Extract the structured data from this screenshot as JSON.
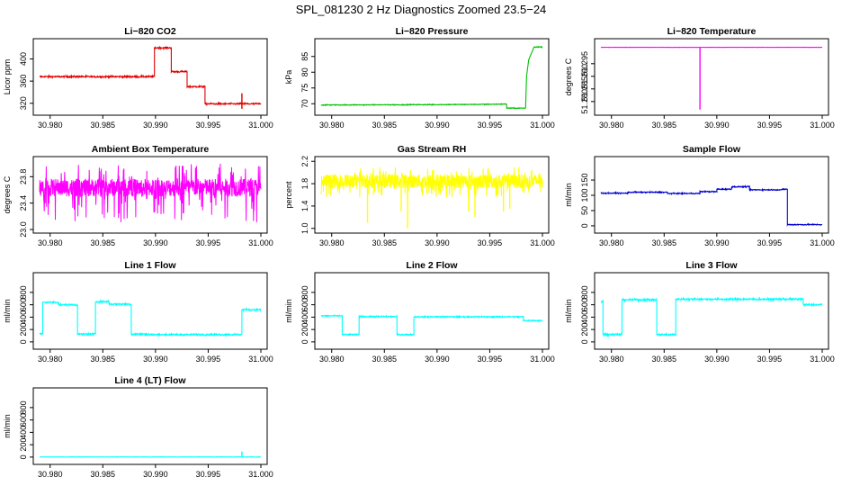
{
  "figure": {
    "title": "SPL_081230  2 Hz Diagnostics Zoomed 23.5−24"
  },
  "colors": {
    "red": "#e00000",
    "green": "#00c000",
    "magenta": "#ff00ff",
    "yellow": "#ffff00",
    "blue": "#0000d0",
    "cyan": "#00ffff"
  },
  "chart_data": [
    {
      "type": "line",
      "title": "Li−820 CO2",
      "ylabel": "Licor ppm",
      "color": "#e00000",
      "xlim": [
        30.979,
        31.0
      ],
      "ylim": [
        305,
        430
      ],
      "x_ticks": [
        30.98,
        30.985,
        30.99,
        30.995,
        31.0
      ],
      "x_tick_labels": [
        "30.980",
        "30.985",
        "30.990",
        "30.995",
        "31.000"
      ],
      "y_ticks": [
        320,
        360,
        400
      ],
      "y_tick_labels": [
        "320",
        "360",
        "400"
      ],
      "series": [
        {
          "style": "noisy",
          "noise": 1.5,
          "x": [
            30.979,
            30.9899,
            30.9899,
            30.9915,
            30.9915,
            30.993,
            30.993,
            30.9947,
            30.9947,
            31.0
          ],
          "y": [
            368,
            368,
            420,
            420,
            377,
            377,
            350,
            350,
            319,
            319
          ]
        },
        {
          "style": "spikes",
          "x": [
            30.9982
          ],
          "y": [
            [
              310,
              338
            ]
          ]
        }
      ]
    },
    {
      "type": "line",
      "title": "Li−820 Pressure",
      "ylabel": "kPa",
      "color": "#00c000",
      "xlim": [
        30.979,
        31.0
      ],
      "ylim": [
        67.5,
        89.5
      ],
      "x_ticks": [
        30.98,
        30.985,
        30.99,
        30.995,
        31.0
      ],
      "x_tick_labels": [
        "30.980",
        "30.985",
        "30.990",
        "30.995",
        "31.000"
      ],
      "y_ticks": [
        70,
        75,
        80,
        85
      ],
      "y_tick_labels": [
        "70",
        "75",
        "80",
        "85"
      ],
      "series": [
        {
          "style": "noisy",
          "noise": 0.12,
          "x": [
            30.979,
            30.9895,
            30.9945,
            30.9966,
            30.9966,
            30.9984,
            30.9985,
            30.9987,
            30.9992,
            31.0
          ],
          "y": [
            69.6,
            69.7,
            69.8,
            69.9,
            68.6,
            68.6,
            79.0,
            84.0,
            88.0,
            88.0
          ]
        }
      ]
    },
    {
      "type": "line",
      "title": "Li−820 Temperature",
      "ylabel": "degrees C",
      "color": "#ff00ff",
      "xlim": [
        30.979,
        31.0
      ],
      "ylim": [
        51.276,
        51.3035
      ],
      "x_ticks": [
        30.98,
        30.985,
        30.99,
        30.995,
        31.0
      ],
      "x_tick_labels": [
        "30.980",
        "30.985",
        "30.990",
        "30.995",
        "31.000"
      ],
      "y_ticks": [
        51.28,
        51.285,
        51.29,
        51.295
      ],
      "y_tick_labels": [
        "51.280",
        "51.285",
        "51.290",
        "51.295"
      ],
      "series": [
        {
          "style": "noisy",
          "noise": 5e-05,
          "x": [
            30.979,
            31.0
          ],
          "y": [
            51.3015,
            51.3015
          ]
        },
        {
          "style": "spikes",
          "x": [
            30.9884
          ],
          "y": [
            [
              51.2768,
              51.3015
            ]
          ]
        }
      ]
    },
    {
      "type": "line",
      "title": "Ambient Box Temperature",
      "ylabel": "degrees C",
      "color": "#ff00ff",
      "xlim": [
        30.979,
        31.0
      ],
      "ylim": [
        23.0,
        24.05
      ],
      "x_ticks": [
        30.98,
        30.985,
        30.99,
        30.995,
        31.0
      ],
      "x_tick_labels": [
        "30.980",
        "30.985",
        "30.990",
        "30.995",
        "31.000"
      ],
      "y_ticks": [
        23.0,
        23.4,
        23.8
      ],
      "y_tick_labels": [
        "23.0",
        "23.4",
        "23.8"
      ],
      "series": [
        {
          "style": "band",
          "x": [
            30.979,
            31.0
          ],
          "y": [
            23.6,
            23.6
          ],
          "band": [
            23.5,
            23.77
          ],
          "extremes": [
            23.1,
            24.0
          ]
        }
      ]
    },
    {
      "type": "line",
      "title": "Gas Stream RH",
      "ylabel": "percent",
      "color": "#ffff00",
      "xlim": [
        30.979,
        31.0
      ],
      "ylim": [
        0.98,
        2.22
      ],
      "x_ticks": [
        30.98,
        30.985,
        30.99,
        30.995,
        31.0
      ],
      "x_tick_labels": [
        "30.980",
        "30.985",
        "30.990",
        "30.995",
        "31.000"
      ],
      "y_ticks": [
        1.0,
        1.4,
        1.8,
        2.2
      ],
      "y_tick_labels": [
        "1.0",
        "1.4",
        "1.8",
        "2.2"
      ],
      "series": [
        {
          "style": "band",
          "x": [
            30.979,
            31.0
          ],
          "y": [
            1.83,
            1.83
          ],
          "band": [
            1.72,
            1.97
          ],
          "extremes": [
            1.55,
            2.1
          ]
        },
        {
          "style": "spikes",
          "x": [
            30.9834,
            30.9866,
            30.9872,
            30.993,
            30.9936,
            30.9963,
            30.9969
          ],
          "y": [
            [
              1.1,
              1.8
            ],
            [
              1.3,
              1.8
            ],
            [
              1.0,
              1.8
            ],
            [
              1.3,
              1.8
            ],
            [
              1.2,
              1.8
            ],
            [
              1.3,
              1.8
            ],
            [
              1.35,
              1.8
            ]
          ]
        }
      ]
    },
    {
      "type": "line",
      "title": "Sample Flow",
      "ylabel": "ml/min",
      "color": "#0000d0",
      "xlim": [
        30.979,
        31.0
      ],
      "ylim": [
        -12,
        215
      ],
      "x_ticks": [
        30.98,
        30.985,
        30.99,
        30.995,
        31.0
      ],
      "x_tick_labels": [
        "30.980",
        "30.985",
        "30.990",
        "30.995",
        "31.000"
      ],
      "y_ticks": [
        0,
        50,
        100,
        150
      ],
      "y_tick_labels": [
        "0",
        "50",
        "100",
        "150"
      ],
      "series": [
        {
          "style": "noisy",
          "noise": 1.8,
          "x": [
            30.979,
            30.9816,
            30.9816,
            30.9853,
            30.9853,
            30.9884,
            30.9884,
            30.99,
            30.99,
            30.9914,
            30.9914,
            30.9931,
            30.9931,
            30.9962,
            30.9962,
            30.9967,
            30.9967,
            31.0
          ],
          "y": [
            107,
            107,
            110,
            110,
            106,
            106,
            112,
            112,
            120,
            120,
            128,
            128,
            118,
            118,
            120,
            120,
            4,
            4
          ]
        }
      ]
    },
    {
      "type": "line",
      "title": "Line 1 Flow",
      "ylabel": "ml/min",
      "color": "#00ffff",
      "xlim": [
        30.979,
        31.0
      ],
      "ylim": [
        -60,
        1060
      ],
      "x_ticks": [
        30.98,
        30.985,
        30.99,
        30.995,
        31.0
      ],
      "x_tick_labels": [
        "30.980",
        "30.985",
        "30.990",
        "30.995",
        "31.000"
      ],
      "y_ticks": [
        0,
        200,
        400,
        600,
        800
      ],
      "y_tick_labels": [
        "0",
        "200",
        "400",
        "600",
        "800"
      ],
      "series": [
        {
          "style": "noisy",
          "noise": 14,
          "x": [
            30.979,
            30.9793,
            30.9793,
            30.9808,
            30.9808,
            30.9826,
            30.9826,
            30.9843,
            30.9843,
            30.9856,
            30.9856,
            30.9877,
            30.9877,
            30.9894,
            30.9894,
            30.9982,
            30.9982,
            31.0
          ],
          "y": [
            130,
            130,
            640,
            640,
            600,
            600,
            125,
            125,
            650,
            650,
            610,
            610,
            125,
            125,
            118,
            118,
            520,
            520
          ]
        }
      ]
    },
    {
      "type": "line",
      "title": "Line 2 Flow",
      "ylabel": "ml/min",
      "color": "#00ffff",
      "xlim": [
        30.979,
        31.0
      ],
      "ylim": [
        -60,
        1060
      ],
      "x_ticks": [
        30.98,
        30.985,
        30.99,
        30.995,
        31.0
      ],
      "x_tick_labels": [
        "30.980",
        "30.985",
        "30.990",
        "30.995",
        "31.000"
      ],
      "y_ticks": [
        0,
        200,
        400,
        600,
        800
      ],
      "y_tick_labels": [
        "0",
        "200",
        "400",
        "600",
        "800"
      ],
      "series": [
        {
          "style": "noisy",
          "noise": 10,
          "x": [
            30.979,
            30.981,
            30.981,
            30.9826,
            30.9826,
            30.9862,
            30.9862,
            30.9878,
            30.9878,
            30.9982,
            30.9982,
            31.0
          ],
          "y": [
            420,
            420,
            118,
            118,
            410,
            410,
            118,
            118,
            405,
            405,
            345,
            345
          ]
        }
      ]
    },
    {
      "type": "line",
      "title": "Line 3 Flow",
      "ylabel": "ml/min",
      "color": "#00ffff",
      "xlim": [
        30.979,
        31.0
      ],
      "ylim": [
        -60,
        1060
      ],
      "x_ticks": [
        30.98,
        30.985,
        30.99,
        30.995,
        31.0
      ],
      "x_tick_labels": [
        "30.980",
        "30.985",
        "30.990",
        "30.995",
        "31.000"
      ],
      "y_ticks": [
        0,
        200,
        400,
        600,
        800
      ],
      "y_tick_labels": [
        "0",
        "200",
        "400",
        "600",
        "800"
      ],
      "series": [
        {
          "style": "noisy",
          "noise": 16,
          "x": [
            30.979,
            30.9792,
            30.9792,
            30.981,
            30.981,
            30.9843,
            30.9843,
            30.9861,
            30.9861,
            30.9982,
            30.9982,
            31.0
          ],
          "y": [
            650,
            650,
            120,
            120,
            680,
            680,
            118,
            118,
            690,
            690,
            600,
            600
          ]
        }
      ]
    },
    {
      "type": "line",
      "title": "Line 4 (LT) Flow",
      "ylabel": "ml/min",
      "color": "#00ffff",
      "xlim": [
        30.979,
        31.0
      ],
      "ylim": [
        -60,
        1060
      ],
      "x_ticks": [
        30.98,
        30.985,
        30.99,
        30.995,
        31.0
      ],
      "x_tick_labels": [
        "30.980",
        "30.985",
        "30.990",
        "30.995",
        "31.000"
      ],
      "y_ticks": [
        0,
        200,
        400,
        600,
        800
      ],
      "y_tick_labels": [
        "0",
        "200",
        "400",
        "600",
        "800"
      ],
      "series": [
        {
          "style": "noisy",
          "noise": 3,
          "x": [
            30.979,
            31.0
          ],
          "y": [
            2,
            2
          ]
        },
        {
          "style": "spikes",
          "x": [
            30.9982
          ],
          "y": [
            [
              0,
              90
            ]
          ]
        }
      ]
    }
  ]
}
